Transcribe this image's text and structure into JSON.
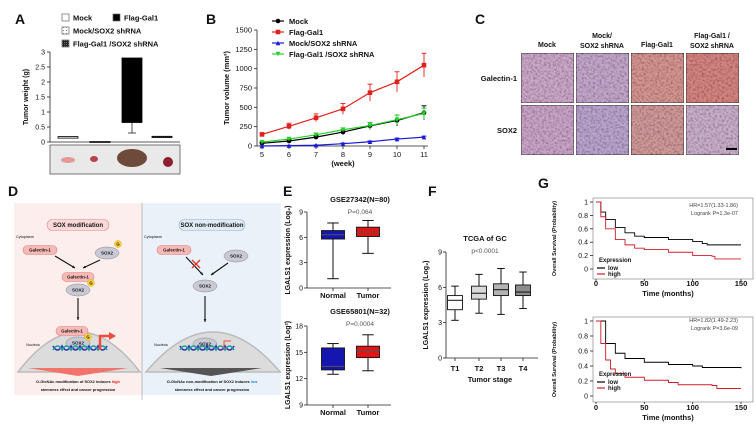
{
  "panel_labels": [
    "A",
    "B",
    "C",
    "D",
    "E",
    "F",
    "G"
  ],
  "chart_data": [
    {
      "type": "bar",
      "ylabel": "Tumor weight (g)",
      "ylim": [
        0,
        3
      ],
      "yticks": [
        0,
        0.5,
        1,
        1.5,
        2,
        2.5,
        3
      ],
      "categories": [
        "Mock",
        "Mock/SOX2 shRNA",
        "Flag-Gal1",
        "Flag-Gal1 /SOX2 shRNA"
      ],
      "legend": [
        "Mock",
        "Flag-Gal1",
        "Mock/SOX2 shRNA",
        "Flag-Gal1 /SOX2 shRNA"
      ],
      "fills": [
        "#ffffff",
        "dotted",
        "#000000",
        "checkered"
      ],
      "values": [
        0.18,
        0.015,
        2.8,
        0.19
      ],
      "lower": [
        0.13,
        0.005,
        0.65,
        0.15
      ],
      "error_low": [
        null,
        null,
        0.3,
        null
      ]
    },
    {
      "type": "line",
      "xlabel": "(week)",
      "ylabel": "Tumor volume (mm³)",
      "x": [
        5,
        6,
        7,
        8,
        9,
        10,
        11
      ],
      "ylim": [
        0,
        1500
      ],
      "yticks": [
        0,
        250,
        500,
        750,
        1000,
        1250,
        1500
      ],
      "legend": "top-left",
      "series": [
        {
          "name": "Mock",
          "color": "#000000",
          "marker": "circle",
          "values": [
            35,
            65,
            115,
            180,
            260,
            330,
            430
          ],
          "errors": [
            10,
            15,
            20,
            30,
            45,
            70,
            90
          ]
        },
        {
          "name": "Flag-Gal1",
          "color": "#e0201b",
          "marker": "square",
          "values": [
            150,
            255,
            365,
            480,
            690,
            830,
            1045
          ],
          "errors": [
            15,
            40,
            50,
            70,
            110,
            130,
            155
          ]
        },
        {
          "name": "Mock/SOX2 shRNA",
          "color": "#1a1ad6",
          "marker": "triangle-up",
          "values": [
            0,
            5,
            10,
            30,
            55,
            90,
            115
          ],
          "errors": [
            3,
            4,
            5,
            8,
            10,
            12,
            12
          ]
        },
        {
          "name": "Flag-Gal1 /SOX2 shRNA",
          "color": "#27d12a",
          "marker": "triangle-down",
          "values": [
            50,
            90,
            145,
            210,
            265,
            340,
            420
          ],
          "errors": [
            10,
            15,
            20,
            25,
            40,
            60,
            70
          ]
        }
      ]
    },
    {
      "type": "box",
      "title": "GSE27342(N=80)",
      "annotation": "P=0.064",
      "ylabel": "LGALS1 expression (Log₂)",
      "ylim": [
        0,
        9
      ],
      "yticks": [
        0,
        3,
        6,
        9
      ],
      "categories": [
        "Normal",
        "Tumor"
      ],
      "colors": [
        "#1515b0",
        "#e01515"
      ],
      "boxes": [
        {
          "min": 1.1,
          "q1": 5.8,
          "median": 6.3,
          "q3": 6.8,
          "max": 7.7
        },
        {
          "min": 4.1,
          "q1": 6.1,
          "median": 6.6,
          "q3": 7.2,
          "max": 8.0
        }
      ]
    },
    {
      "type": "box",
      "title": "GSE65801(N=32)",
      "annotation": "P=0.0004",
      "ylabel": "LGALS1 expression (Log²)",
      "ylim": [
        9,
        18
      ],
      "yticks": [
        9,
        12,
        15,
        18
      ],
      "categories": [
        "Normal",
        "Tumor"
      ],
      "colors": [
        "#1515b0",
        "#e01515"
      ],
      "boxes": [
        {
          "min": 12.5,
          "q1": 13.0,
          "median": 13.4,
          "q3": 15.5,
          "max": 16.0
        },
        {
          "min": 12.9,
          "q1": 14.4,
          "median": 15.2,
          "q3": 15.7,
          "max": 17.0
        }
      ]
    },
    {
      "type": "box",
      "title": "TCGA of GC",
      "annotation": "p<0.0001",
      "xlabel": "Tumor stage",
      "ylabel": "LGALS1 expression (Log₂)",
      "ylim": [
        0,
        9
      ],
      "yticks": [
        0,
        3,
        6,
        9
      ],
      "categories": [
        "T1",
        "T2",
        "T3",
        "T4"
      ],
      "colors": [
        "#ffffff",
        "#d9d9d9",
        "#b3b3b3",
        "#8c8c8c"
      ],
      "boxes": [
        {
          "min": 3.2,
          "q1": 4.1,
          "median": 4.9,
          "q3": 5.3,
          "max": 6.1
        },
        {
          "min": 3.8,
          "q1": 5.0,
          "median": 5.5,
          "q3": 6.1,
          "max": 7.1
        },
        {
          "min": 3.7,
          "q1": 5.3,
          "median": 5.8,
          "q3": 6.3,
          "max": 7.6
        },
        {
          "min": 4.2,
          "q1": 5.3,
          "median": 5.6,
          "q3": 6.2,
          "max": 7.3
        }
      ]
    },
    {
      "type": "line",
      "subtype": "kaplan-meier",
      "xlabel": "Time (months)",
      "ylabel": "Overall Survival (Probability)",
      "xlim": [
        0,
        150
      ],
      "xticks": [
        0,
        50,
        100,
        150
      ],
      "ylim": [
        0,
        1
      ],
      "yticks": [
        0,
        0.2,
        0.4,
        0.6,
        0.8,
        1
      ],
      "annotations": [
        "HR=1.57(1.33-1.86)",
        "Logrank P=1.3e-07"
      ],
      "legend_title": "Expression",
      "series": [
        {
          "name": "low",
          "color": "#000000",
          "x": [
            0,
            5,
            10,
            20,
            30,
            40,
            50,
            75,
            100,
            110,
            115,
            150
          ],
          "y": [
            1,
            0.85,
            0.74,
            0.62,
            0.54,
            0.49,
            0.47,
            0.44,
            0.41,
            0.38,
            0.36,
            0.36
          ]
        },
        {
          "name": "high",
          "color": "#d01c2a",
          "x": [
            0,
            5,
            10,
            20,
            30,
            40,
            50,
            75,
            100,
            120,
            123,
            150
          ],
          "y": [
            1,
            0.78,
            0.6,
            0.44,
            0.36,
            0.31,
            0.29,
            0.25,
            0.2,
            0.19,
            0.15,
            0.15
          ]
        }
      ]
    },
    {
      "type": "line",
      "subtype": "kaplan-meier",
      "xlabel": "Time (months)",
      "ylabel": "Overall Survival (Probability)",
      "xlim": [
        0,
        150
      ],
      "xticks": [
        0,
        50,
        100,
        150
      ],
      "ylim": [
        0,
        1
      ],
      "yticks": [
        0,
        0.2,
        0.4,
        0.6,
        0.8,
        1
      ],
      "annotations": [
        "HR=1.82(1.49-2.23)",
        "Logrank P=3.6e-09"
      ],
      "legend_title": "Expression",
      "series": [
        {
          "name": "low",
          "color": "#000000",
          "x": [
            0,
            10,
            20,
            30,
            50,
            75,
            100,
            110,
            150
          ],
          "y": [
            1,
            0.7,
            0.57,
            0.5,
            0.45,
            0.42,
            0.4,
            0.38,
            0.37
          ]
        },
        {
          "name": "high",
          "color": "#d01c2a",
          "x": [
            0,
            5,
            10,
            15,
            20,
            30,
            50,
            75,
            85,
            120,
            125,
            150
          ],
          "y": [
            1,
            0.7,
            0.48,
            0.36,
            0.3,
            0.25,
            0.21,
            0.18,
            0.15,
            0.14,
            0.1,
            0.1
          ]
        }
      ]
    }
  ],
  "panel_c": {
    "columns": [
      [
        "Mock"
      ],
      [
        "Mock/",
        "SOX2 shRNA"
      ],
      [
        "Flag-Gal1"
      ],
      [
        "Flag-Gal1 /",
        "SOX2 shRNA"
      ]
    ],
    "rows": [
      "Galectin-1",
      "SOX2"
    ],
    "tile_colors": [
      [
        "#c9a9c6",
        "#c2a8c8",
        "#d4968f",
        "#d4857f"
      ],
      [
        "#c8a5c5",
        "#b9a6cc",
        "#cf9a97",
        "#c8b0c8"
      ]
    ]
  },
  "panel_d": {
    "left": {
      "title": "SOX modification",
      "cytoplasm": "Cytoplasm",
      "galectin": "Galectin-1",
      "sox2": "SOX2",
      "g": "G",
      "nucleus": "Nucleus",
      "caption": {
        "pre": "O-GlcNAc modification of SOX2 induces ",
        "highlight": "high",
        "line2": "stemness effect and cancer progression"
      },
      "highlight_color": "#e02020"
    },
    "right": {
      "title": "SOX non-modification",
      "cytoplasm": "Cytoplasm",
      "galectin": "Galectin-1",
      "sox2": "SOX2",
      "nucleus": "Nucleus",
      "caption": {
        "pre": "O-GlcNAc non-modification of SOX2 induces ",
        "highlight": "low",
        "line2": "stemness effect and cancer progression"
      },
      "highlight_color": "#1e88e5"
    }
  }
}
